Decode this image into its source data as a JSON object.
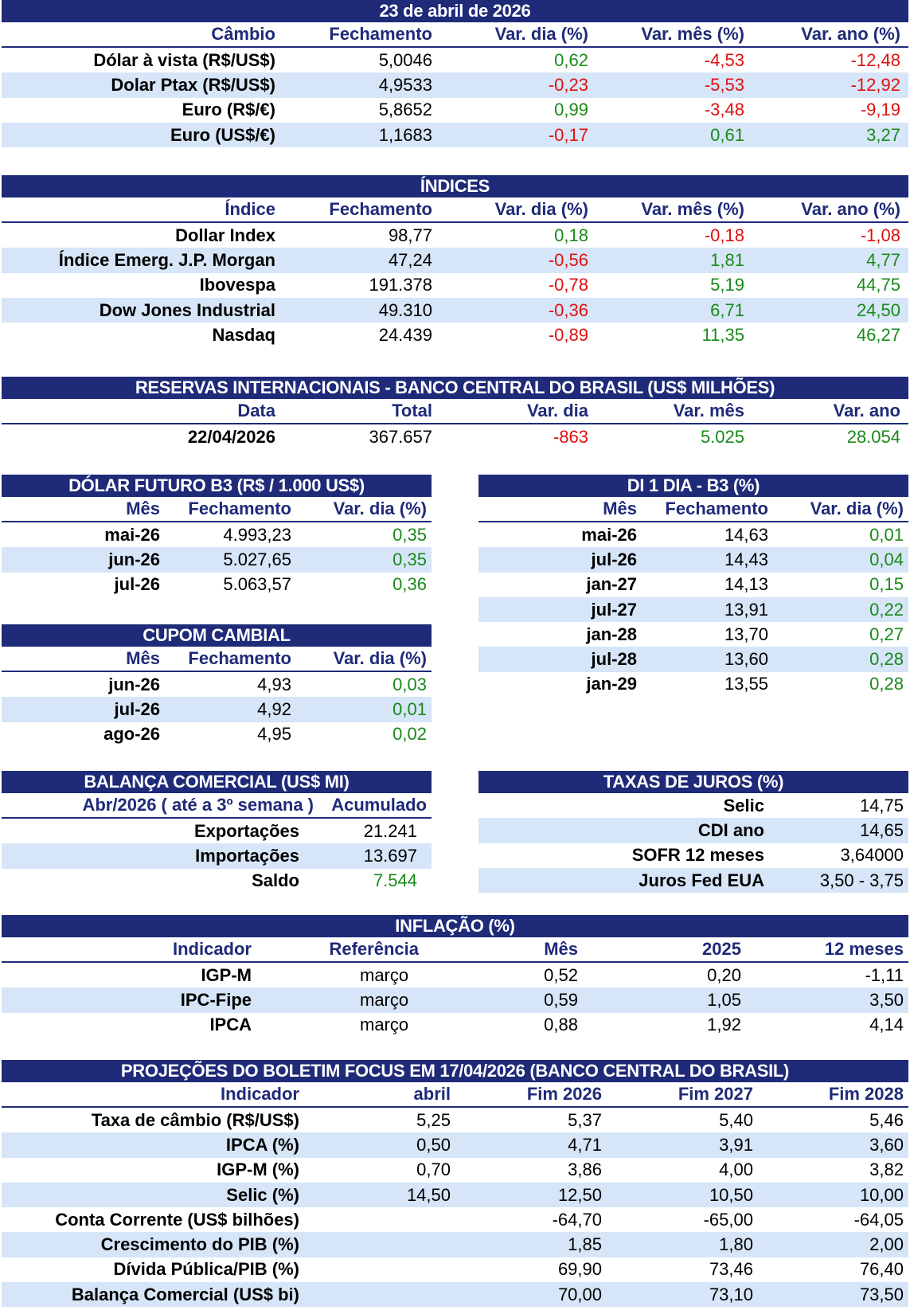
{
  "cambio": {
    "title": "23 de abril de 2026",
    "headers": [
      "Câmbio",
      "Fechamento",
      "Var. dia (%)",
      "Var. mês (%)",
      "Var. ano (%)"
    ],
    "rows": [
      {
        "name": "Dólar à vista (R$/US$)",
        "close": "5,0046",
        "day": "0,62",
        "month": "-4,53",
        "year": "-12,48"
      },
      {
        "name": "Dolar Ptax (R$/US$)",
        "close": "4,9533",
        "day": "-0,23",
        "month": "-5,53",
        "year": "-12,92"
      },
      {
        "name": "Euro (R$/€)",
        "close": "5,8652",
        "day": "0,99",
        "month": "-3,48",
        "year": "-9,19"
      },
      {
        "name": "Euro (US$/€)",
        "close": "1,1683",
        "day": "-0,17",
        "month": "0,61",
        "year": "3,27"
      }
    ]
  },
  "indices": {
    "title": "ÍNDICES",
    "headers": [
      "Índice",
      "Fechamento",
      "Var. dia (%)",
      "Var. mês (%)",
      "Var. ano (%)"
    ],
    "rows": [
      {
        "name": "Dollar Index",
        "close": "98,77",
        "day": "0,18",
        "month": "-0,18",
        "year": "-1,08"
      },
      {
        "name": "Índice Emerg. J.P. Morgan",
        "close": "47,24",
        "day": "-0,56",
        "month": "1,81",
        "year": "4,77"
      },
      {
        "name": "Ibovespa",
        "close": "191.378",
        "day": "-0,78",
        "month": "5,19",
        "year": "44,75"
      },
      {
        "name": "Dow Jones Industrial",
        "close": "49.310",
        "day": "-0,36",
        "month": "6,71",
        "year": "24,50"
      },
      {
        "name": "Nasdaq",
        "close": "24.439",
        "day": "-0,89",
        "month": "11,35",
        "year": "46,27"
      }
    ]
  },
  "reservas": {
    "title": "RESERVAS INTERNACIONAIS - BANCO CENTRAL DO BRASIL (US$ MILHÕES)",
    "headers": [
      "Data",
      "Total",
      "Var. dia",
      "Var. mês",
      "Var. ano"
    ],
    "row": {
      "date": "22/04/2026",
      "total": "367.657",
      "day": "-863",
      "month": "5.025",
      "year": "28.054"
    }
  },
  "dolar_futuro": {
    "title": "DÓLAR FUTURO B3 (R$ / 1.000 US$)",
    "headers": [
      "Mês",
      "Fechamento",
      "Var. dia (%)"
    ],
    "rows": [
      {
        "month": "mai-26",
        "close": "4.993,23",
        "day": "0,35"
      },
      {
        "month": "jun-26",
        "close": "5.027,65",
        "day": "0,35"
      },
      {
        "month": "jul-26",
        "close": "5.063,57",
        "day": "0,36"
      }
    ]
  },
  "di": {
    "title": "DI 1 DIA - B3 (%)",
    "headers": [
      "Mês",
      "Fechamento",
      "Var. dia (%)"
    ],
    "rows": [
      {
        "month": "mai-26",
        "close": "14,63",
        "day": "0,01"
      },
      {
        "month": "jul-26",
        "close": "14,43",
        "day": "0,04"
      },
      {
        "month": "jan-27",
        "close": "14,13",
        "day": "0,15"
      },
      {
        "month": "jul-27",
        "close": "13,91",
        "day": "0,22"
      },
      {
        "month": "jan-28",
        "close": "13,70",
        "day": "0,27"
      },
      {
        "month": "jul-28",
        "close": "13,60",
        "day": "0,28"
      },
      {
        "month": "jan-29",
        "close": "13,55",
        "day": "0,28"
      }
    ]
  },
  "cupom": {
    "title": "CUPOM CAMBIAL",
    "headers": [
      "Mês",
      "Fechamento",
      "Var. dia (%)"
    ],
    "rows": [
      {
        "month": "jun-26",
        "close": "4,93",
        "day": "0,03"
      },
      {
        "month": "jul-26",
        "close": "4,92",
        "day": "0,01"
      },
      {
        "month": "ago-26",
        "close": "4,95",
        "day": "0,02"
      }
    ]
  },
  "balanca": {
    "title": "BALANÇA COMERCIAL (US$ MI)",
    "headers": [
      "Abr/2026 ( até a 3º semana )",
      "Acumulado"
    ],
    "rows": [
      {
        "name": "Exportações",
        "value": "21.241"
      },
      {
        "name": "Importações",
        "value": "13.697"
      },
      {
        "name": "Saldo",
        "value": "7.544"
      }
    ]
  },
  "juros": {
    "title": "TAXAS DE JUROS (%)",
    "rows": [
      {
        "name": "Selic",
        "value": "14,75"
      },
      {
        "name": "CDI ano",
        "value": "14,65"
      },
      {
        "name": "SOFR 12 meses",
        "value": "3,64000"
      },
      {
        "name": "Juros Fed EUA",
        "value": "3,50 - 3,75"
      }
    ]
  },
  "inflacao": {
    "title": "INFLAÇÃO (%)",
    "headers": [
      "Indicador",
      "Referência",
      "Mês",
      "2025",
      "12 meses"
    ],
    "rows": [
      {
        "name": "IGP-M",
        "ref": "março",
        "month": "0,52",
        "y2025": "0,20",
        "m12": "-1,11"
      },
      {
        "name": "IPC-Fipe",
        "ref": "março",
        "month": "0,59",
        "y2025": "1,05",
        "m12": "3,50"
      },
      {
        "name": "IPCA",
        "ref": "março",
        "month": "0,88",
        "y2025": "1,92",
        "m12": "4,14"
      }
    ]
  },
  "focus": {
    "title": "PROJEÇÕES DO BOLETIM FOCUS EM 17/04/2026 (BANCO CENTRAL DO BRASIL)",
    "headers": [
      "Indicador",
      "abril",
      "Fim 2026",
      "Fim 2027",
      "Fim 2028"
    ],
    "rows": [
      {
        "name": "Taxa de câmbio (R$/US$)",
        "abril": "5,25",
        "f26": "5,37",
        "f27": "5,40",
        "f28": "5,46"
      },
      {
        "name": "IPCA (%)",
        "abril": "0,50",
        "f26": "4,71",
        "f27": "3,91",
        "f28": "3,60"
      },
      {
        "name": "IGP-M (%)",
        "abril": "0,70",
        "f26": "3,86",
        "f27": "4,00",
        "f28": "3,82"
      },
      {
        "name": "Selic (%)",
        "abril": "14,50",
        "f26": "12,50",
        "f27": "10,50",
        "f28": "10,00"
      },
      {
        "name": "Conta Corrente (US$ bilhões)",
        "abril": "",
        "f26": "-64,70",
        "f27": "-65,00",
        "f28": "-64,05"
      },
      {
        "name": "Crescimento do PIB (%)",
        "abril": "",
        "f26": "1,85",
        "f27": "1,80",
        "f28": "2,00"
      },
      {
        "name": "Dívida Pública/PIB (%)",
        "abril": "",
        "f26": "69,90",
        "f27": "73,46",
        "f28": "76,40"
      },
      {
        "name": "Balança Comercial (US$ bi)",
        "abril": "",
        "f26": "70,00",
        "f27": "73,10",
        "f28": "73,50"
      }
    ]
  }
}
